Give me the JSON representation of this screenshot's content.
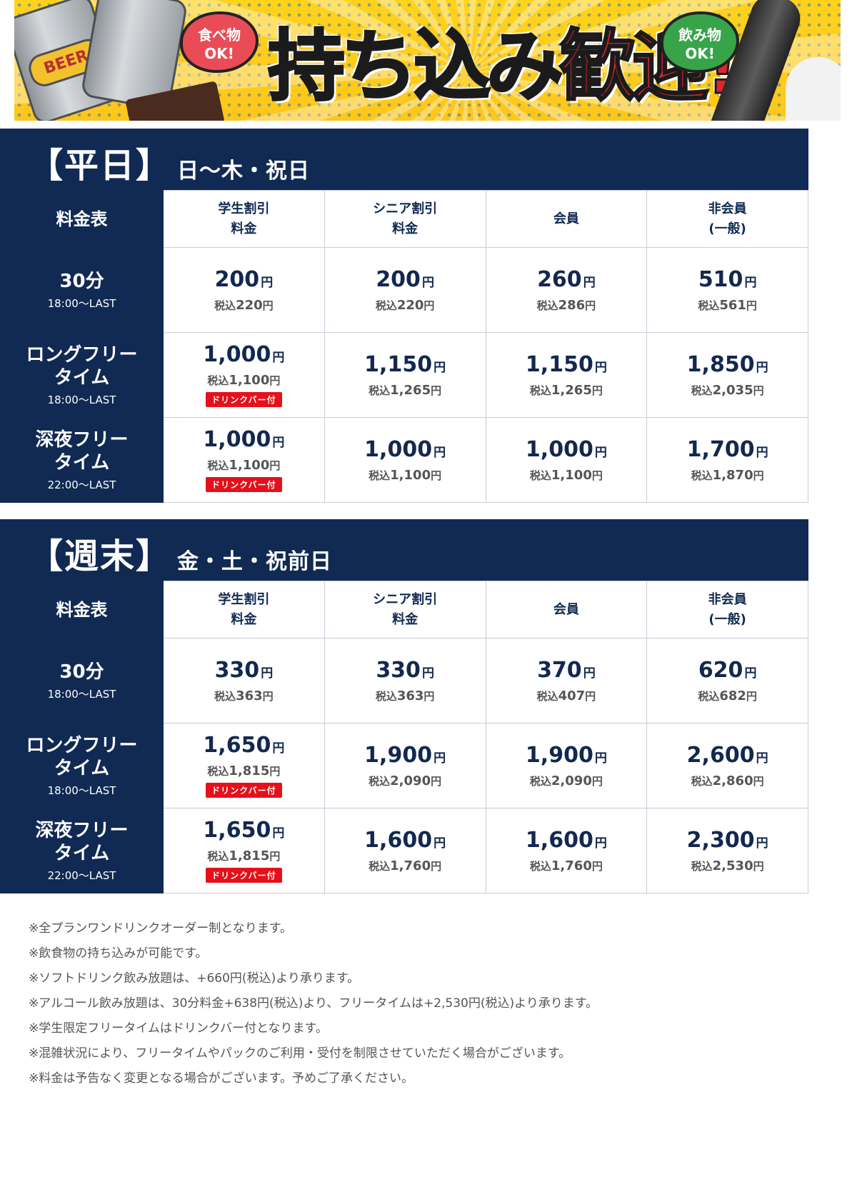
{
  "banner": {
    "can_text": "BEER",
    "bubble_food": "食べ物OK!",
    "bubble_food_l1": "食べ物",
    "bubble_food_l2": "OK!",
    "bubble_drink_l1": "飲み物",
    "bubble_drink_l2": "OK!",
    "headline_main": "持ち込み",
    "headline_accent": "歓迎!"
  },
  "weekday": {
    "title": "【平日】",
    "subtitle": "日〜木・祝日",
    "corner": "料金表",
    "columns": [
      {
        "l1": "学生割引",
        "l2": "料金"
      },
      {
        "l1": "シニア割引",
        "l2": "料金"
      },
      {
        "l1": "会員",
        "l2": ""
      },
      {
        "l1": "非会員",
        "l2": "(一般)"
      }
    ],
    "rows": [
      {
        "name1": "30分",
        "name2": "",
        "time": "18:00〜LAST",
        "cells": [
          {
            "amt": "200",
            "tax": "220",
            "drink": ""
          },
          {
            "amt": "200",
            "tax": "220",
            "drink": ""
          },
          {
            "amt": "260",
            "tax": "286",
            "drink": ""
          },
          {
            "amt": "510",
            "tax": "561",
            "drink": ""
          }
        ]
      },
      {
        "name1": "ロングフリー",
        "name2": "タイム",
        "time": "18:00〜LAST",
        "cells": [
          {
            "amt": "1,000",
            "tax": "1,100",
            "drink": "ドリンクバー付"
          },
          {
            "amt": "1,150",
            "tax": "1,265",
            "drink": ""
          },
          {
            "amt": "1,150",
            "tax": "1,265",
            "drink": ""
          },
          {
            "amt": "1,850",
            "tax": "2,035",
            "drink": ""
          }
        ]
      },
      {
        "name1": "深夜フリー",
        "name2": "タイム",
        "time": "22:00〜LAST",
        "cells": [
          {
            "amt": "1,000",
            "tax": "1,100",
            "drink": "ドリンクバー付"
          },
          {
            "amt": "1,000",
            "tax": "1,100",
            "drink": ""
          },
          {
            "amt": "1,000",
            "tax": "1,100",
            "drink": ""
          },
          {
            "amt": "1,700",
            "tax": "1,870",
            "drink": ""
          }
        ]
      }
    ]
  },
  "weekend": {
    "title": "【週末】",
    "subtitle": "金・土・祝前日",
    "corner": "料金表",
    "columns": [
      {
        "l1": "学生割引",
        "l2": "料金"
      },
      {
        "l1": "シニア割引",
        "l2": "料金"
      },
      {
        "l1": "会員",
        "l2": ""
      },
      {
        "l1": "非会員",
        "l2": "(一般)"
      }
    ],
    "rows": [
      {
        "name1": "30分",
        "name2": "",
        "time": "18:00〜LAST",
        "cells": [
          {
            "amt": "330",
            "tax": "363",
            "drink": ""
          },
          {
            "amt": "330",
            "tax": "363",
            "drink": ""
          },
          {
            "amt": "370",
            "tax": "407",
            "drink": ""
          },
          {
            "amt": "620",
            "tax": "682",
            "drink": ""
          }
        ]
      },
      {
        "name1": "ロングフリー",
        "name2": "タイム",
        "time": "18:00〜LAST",
        "cells": [
          {
            "amt": "1,650",
            "tax": "1,815",
            "drink": "ドリンクバー付"
          },
          {
            "amt": "1,900",
            "tax": "2,090",
            "drink": ""
          },
          {
            "amt": "1,900",
            "tax": "2,090",
            "drink": ""
          },
          {
            "amt": "2,600",
            "tax": "2,860",
            "drink": ""
          }
        ]
      },
      {
        "name1": "深夜フリー",
        "name2": "タイム",
        "time": "22:00〜LAST",
        "cells": [
          {
            "amt": "1,650",
            "tax": "1,815",
            "drink": "ドリンクバー付"
          },
          {
            "amt": "1,600",
            "tax": "1,760",
            "drink": ""
          },
          {
            "amt": "1,600",
            "tax": "1,760",
            "drink": ""
          },
          {
            "amt": "2,300",
            "tax": "2,530",
            "drink": ""
          }
        ]
      }
    ]
  },
  "labels": {
    "yen": "円",
    "tax_prefix": "税込"
  },
  "notes": [
    "※全プランワンドリンクオーダー制となります。",
    "※飲食物の持ち込みが可能です。",
    "※ソフトドリンク飲み放題は、+660円(税込)より承ります。",
    "※アルコール飲み放題は、30分料金+638円(税込)より、フリータイムは+2,530円(税込)より承ります。",
    "※学生限定フリータイムはドリンクバー付となります。",
    "※混雑状況により、フリータイムやパックのご利用・受付を制限させていただく場合がございます。",
    "※料金は予告なく変更となる場合がございます。予めご了承ください。"
  ],
  "colors": {
    "navy": "#102a53",
    "drink_badge": "#e5101a",
    "banner_yellow": "#ffd21c",
    "headline_red": "#e4232c"
  }
}
